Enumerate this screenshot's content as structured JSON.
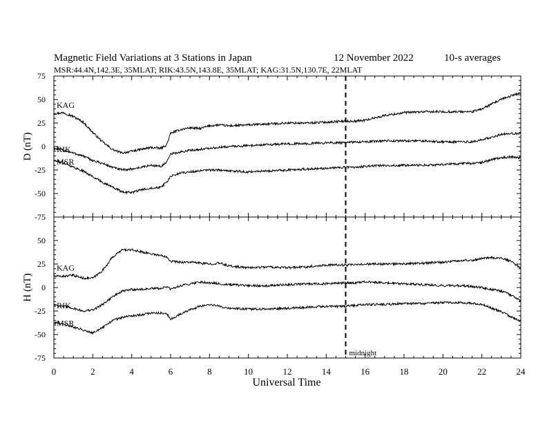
{
  "header": {
    "title": "Magnetic Field Variations at 3 Stations in Japan",
    "date": "12 November 2022",
    "averaging": "10-s averages",
    "stations_line": "MSR:44.4N,142.3E, 35MLAT;  RIK:43.5N,143.8E, 35MLAT;  KAG:31.5N,130.7E, 22MLAT"
  },
  "chart_data": [
    {
      "type": "line",
      "ylabel": "D (nT)",
      "ylim": [
        -75,
        75
      ],
      "yticks": [
        -75,
        -50,
        -25,
        0,
        25,
        50,
        75
      ],
      "xlim": [
        0,
        24
      ],
      "grid": false,
      "series": [
        {
          "name": "KAG",
          "x": [
            0,
            0.5,
            1,
            1.5,
            2,
            2.5,
            3,
            3.5,
            4,
            4.5,
            5,
            5.5,
            5.8,
            6,
            6.5,
            7,
            7.5,
            8,
            8.5,
            9,
            10,
            11,
            12,
            13,
            14,
            15,
            15.5,
            16,
            17,
            18,
            19,
            20,
            21,
            21.5,
            22,
            22.5,
            23,
            23.5,
            24
          ],
          "values": [
            35,
            36,
            32,
            26,
            15,
            5,
            -3,
            -7,
            -5,
            -3,
            -1,
            -2,
            2,
            14,
            18,
            20,
            19,
            22,
            23,
            22,
            23,
            24,
            25,
            25,
            26,
            27,
            27,
            28,
            33,
            36,
            37,
            37,
            37,
            37,
            40,
            45,
            50,
            54,
            57
          ]
        },
        {
          "name": "RIK",
          "x": [
            0,
            0.5,
            1,
            1.5,
            2,
            2.5,
            3,
            3.5,
            4,
            4.5,
            5,
            5.5,
            5.8,
            6,
            6.5,
            7,
            7.5,
            8,
            8.5,
            9,
            10,
            11,
            12,
            13,
            14,
            15,
            15.5,
            16,
            17,
            18,
            19,
            20,
            21,
            21.5,
            22,
            22.5,
            23,
            23.5,
            24
          ],
          "values": [
            -2,
            -4,
            -7,
            -10,
            -15,
            -18,
            -22,
            -25,
            -24,
            -22,
            -20,
            -21,
            -17,
            -8,
            -6,
            -4,
            -3,
            -2,
            -1,
            0,
            1,
            2,
            3,
            3,
            4,
            4,
            5,
            5,
            6,
            6,
            6,
            5,
            5,
            5,
            7,
            10,
            13,
            14,
            14
          ]
        },
        {
          "name": "MSR",
          "x": [
            0,
            0.5,
            1,
            1.5,
            2,
            2.5,
            3,
            3.5,
            4,
            4.5,
            5,
            5.5,
            5.8,
            6,
            6.5,
            7,
            7.5,
            8,
            8.5,
            9,
            10,
            11,
            12,
            13,
            14,
            15,
            15.5,
            16,
            17,
            18,
            19,
            20,
            21,
            21.5,
            22,
            22.5,
            23,
            23.5,
            24
          ],
          "values": [
            -15,
            -17,
            -22,
            -26,
            -32,
            -38,
            -43,
            -48,
            -49,
            -46,
            -44,
            -43,
            -38,
            -32,
            -28,
            -27,
            -26,
            -25,
            -25,
            -26,
            -27,
            -26,
            -25,
            -24,
            -23,
            -22,
            -22,
            -21,
            -20,
            -20,
            -20,
            -19,
            -18,
            -18,
            -17,
            -14,
            -12,
            -11,
            -12
          ]
        }
      ]
    },
    {
      "type": "line",
      "ylabel": "H (nT)",
      "xlabel": "Universal Time",
      "ylim": [
        -75,
        75
      ],
      "yticks": [
        -75,
        -50,
        -25,
        0,
        25,
        50,
        75
      ],
      "xlim": [
        0,
        24
      ],
      "xticks": [
        0,
        2,
        4,
        6,
        8,
        10,
        12,
        14,
        16,
        18,
        20,
        22,
        24
      ],
      "grid": false,
      "annotation": {
        "x": 15,
        "label": "midnight"
      },
      "series": [
        {
          "name": "KAG",
          "x": [
            0,
            0.5,
            1,
            1.5,
            2,
            2.5,
            3,
            3.5,
            4,
            4.5,
            5,
            5.5,
            5.8,
            6,
            6.5,
            7,
            7.5,
            8,
            8.5,
            9,
            10,
            11,
            12,
            13,
            14,
            15,
            15.5,
            16,
            17,
            18,
            19,
            20,
            21,
            21.5,
            22,
            22.5,
            23,
            23.5,
            24
          ],
          "values": [
            12,
            12,
            13,
            10,
            10,
            18,
            32,
            40,
            40,
            38,
            36,
            34,
            33,
            28,
            27,
            27,
            26,
            25,
            26,
            23,
            21,
            22,
            21,
            22,
            24,
            24,
            24,
            25,
            25,
            25,
            26,
            27,
            29,
            29,
            31,
            32,
            31,
            28,
            20
          ]
        },
        {
          "name": "RIK",
          "x": [
            0,
            0.5,
            1,
            1.5,
            2,
            2.5,
            3,
            3.5,
            4,
            4.5,
            5,
            5.5,
            5.8,
            6,
            6.5,
            7,
            7.5,
            8,
            8.5,
            9,
            10,
            11,
            12,
            13,
            14,
            15,
            15.5,
            16,
            17,
            18,
            19,
            20,
            21,
            21.5,
            22,
            22.5,
            23,
            23.5,
            24
          ],
          "values": [
            -18,
            -20,
            -22,
            -25,
            -24,
            -18,
            -10,
            -4,
            -2,
            -2,
            -1,
            -1,
            1,
            -2,
            2,
            4,
            6,
            5,
            4,
            3,
            2,
            2,
            3,
            4,
            4,
            5,
            5,
            6,
            5,
            4,
            3,
            2,
            2,
            1,
            0,
            -2,
            -4,
            -8,
            -14
          ]
        },
        {
          "name": "MSR",
          "x": [
            0,
            0.5,
            1,
            1.5,
            2,
            2.5,
            3,
            3.5,
            4,
            4.5,
            5,
            5.5,
            5.8,
            6,
            6.5,
            7,
            7.5,
            8,
            8.5,
            9,
            10,
            11,
            12,
            13,
            14,
            15,
            15.5,
            16,
            17,
            18,
            19,
            20,
            21,
            21.5,
            22,
            22.5,
            23,
            23.5,
            24
          ],
          "values": [
            -37,
            -39,
            -42,
            -45,
            -48,
            -43,
            -35,
            -32,
            -30,
            -29,
            -27,
            -27,
            -28,
            -34,
            -28,
            -24,
            -20,
            -18,
            -20,
            -22,
            -23,
            -23,
            -22,
            -21,
            -20,
            -20,
            -19,
            -18,
            -18,
            -17,
            -17,
            -16,
            -16,
            -17,
            -18,
            -22,
            -26,
            -31,
            -36
          ]
        }
      ]
    }
  ]
}
